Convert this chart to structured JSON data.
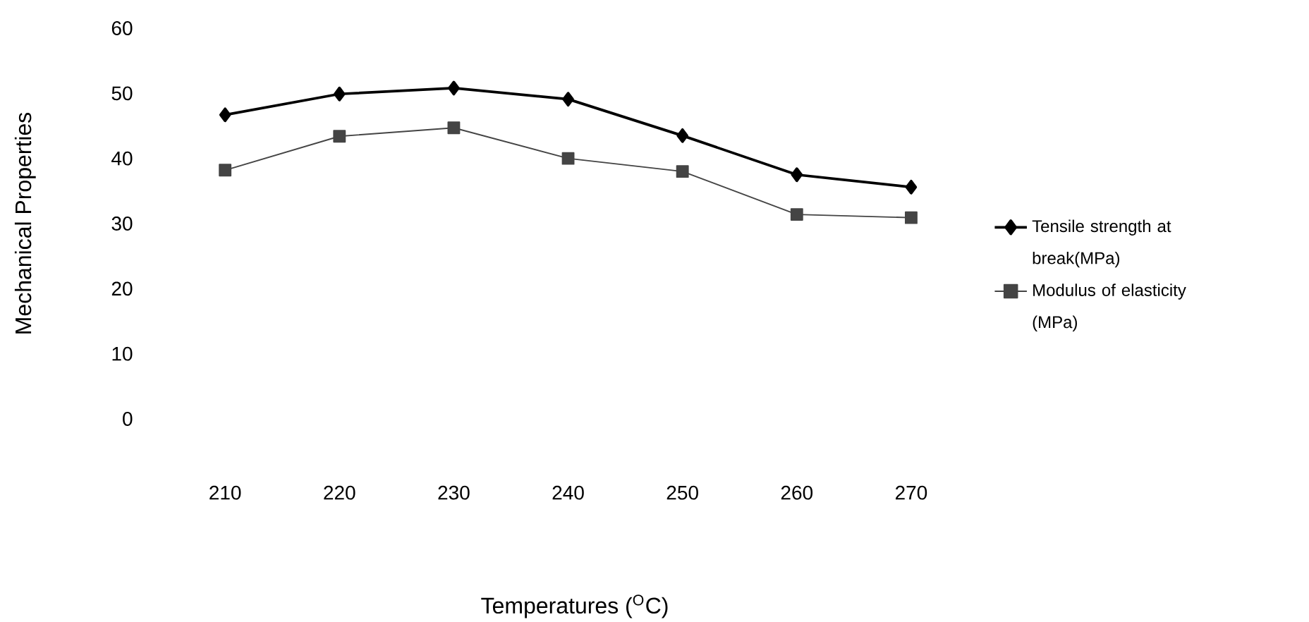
{
  "chart_data": {
    "type": "line",
    "xlabel": "Temperatures ($^{O}$C)",
    "ylabel": "Mechanical Properties",
    "categories": [
      "210",
      "220",
      "230",
      "240",
      "250",
      "260",
      "270"
    ],
    "series": [
      {
        "name": "Tensile strength at break(MPa)",
        "color": "#000000",
        "marker": "diamond",
        "values": [
          46.7,
          49.9,
          50.8,
          49.1,
          43.5,
          37.5,
          35.6
        ]
      },
      {
        "name": "Modulus of elasticity (MPa)",
        "color": "#444444",
        "marker": "square",
        "values": [
          38.2,
          43.4,
          44.7,
          40.0,
          38.0,
          31.4,
          30.9
        ]
      }
    ],
    "ylim": [
      0,
      60
    ],
    "yticks": [
      0,
      10,
      20,
      30,
      40,
      50,
      60
    ],
    "legend": "right",
    "line_style": "solid"
  }
}
